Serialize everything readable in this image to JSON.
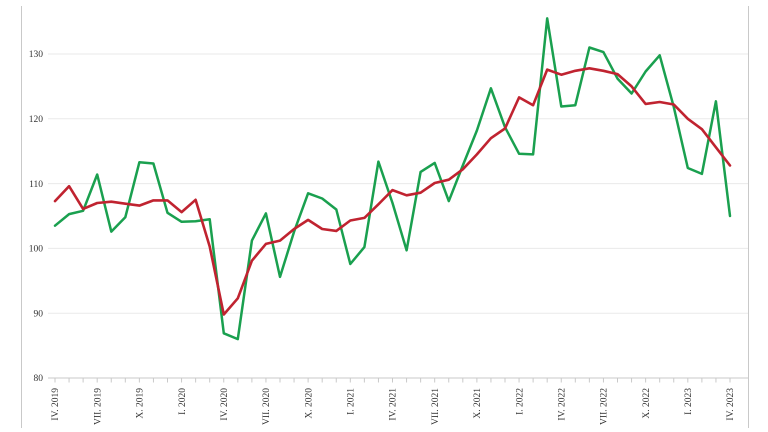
{
  "chart_data": {
    "type": "line",
    "title": "",
    "xlabel": "",
    "ylabel": "",
    "background_color": "#ffffff",
    "gridline_color": "#eaeaea",
    "axis_color": "#c9c9c9",
    "tick_label_color": "#333333",
    "grid": true,
    "legend": "none",
    "n_points": 49,
    "points_per_x_label": 3,
    "ylim": [
      80,
      137
    ],
    "yticks": [
      80,
      90,
      100,
      110,
      120,
      130
    ],
    "x_tick_labels": [
      "IV. 2019",
      "VII. 2019",
      "X. 2019",
      "I. 2020",
      "IV. 2020",
      "VII. 2020",
      "X. 2020",
      "I. 2021",
      "IV. 2021",
      "VII. 2021",
      "X. 2021",
      "I. 2022",
      "IV. 2022",
      "VII. 2022",
      "X. 2022",
      "I. 2023",
      "IV. 2023"
    ],
    "series": [
      {
        "name": "green-series",
        "color": "#1aa04f",
        "stroke_width": 2.5,
        "values": [
          103.5,
          105.3,
          105.8,
          111.4,
          102.6,
          104.8,
          113.3,
          113.1,
          105.5,
          104.1,
          104.2,
          104.5,
          86.9,
          86.0,
          101.2,
          105.4,
          95.6,
          102.6,
          108.5,
          107.7,
          106.0,
          97.6,
          100.2,
          113.4,
          107.0,
          99.7,
          111.8,
          113.2,
          107.3,
          112.8,
          118.2,
          124.7,
          118.7,
          114.6,
          114.5,
          135.5,
          121.9,
          122.1,
          131.0,
          130.3,
          126.2,
          123.9,
          127.3,
          129.8,
          121.8,
          112.4,
          111.5,
          122.7,
          105.0
        ]
      },
      {
        "name": "red-series",
        "color": "#c02330",
        "stroke_width": 2.6,
        "values": [
          107.3,
          109.6,
          106.1,
          107.0,
          107.2,
          106.9,
          106.6,
          107.4,
          107.4,
          105.6,
          107.5,
          100.3,
          89.8,
          92.3,
          98.1,
          100.7,
          101.2,
          103.0,
          104.4,
          103.0,
          102.7,
          104.3,
          104.7,
          106.8,
          109.0,
          108.2,
          108.6,
          110.1,
          110.6,
          112.2,
          114.5,
          117.0,
          118.5,
          123.3,
          122.1,
          127.6,
          126.8,
          127.4,
          127.8,
          127.4,
          126.9,
          125.0,
          122.3,
          122.6,
          122.2,
          120.0,
          118.4,
          115.6,
          112.8
        ]
      }
    ]
  }
}
